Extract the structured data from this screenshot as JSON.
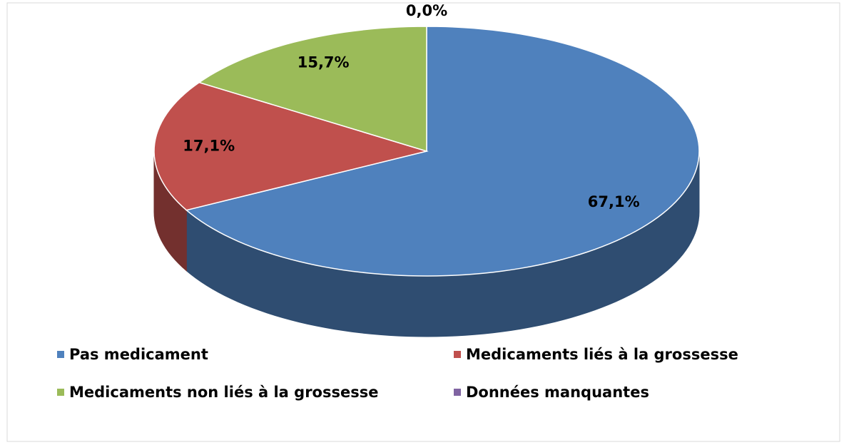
{
  "chart_data": {
    "type": "pie",
    "categories": [
      "Pas medicament",
      "Medicaments liés à la grossesse",
      "Medicaments non liés à la grossesse",
      "Données manquantes"
    ],
    "values": [
      67.1,
      17.1,
      15.7,
      0.0
    ],
    "value_labels": [
      "67,1%",
      "17,1%",
      "15,7%",
      "0,0%"
    ],
    "colors": [
      "#4f81bd",
      "#c0504d",
      "#9bbb59",
      "#8064a2"
    ],
    "legend": "bottom"
  }
}
